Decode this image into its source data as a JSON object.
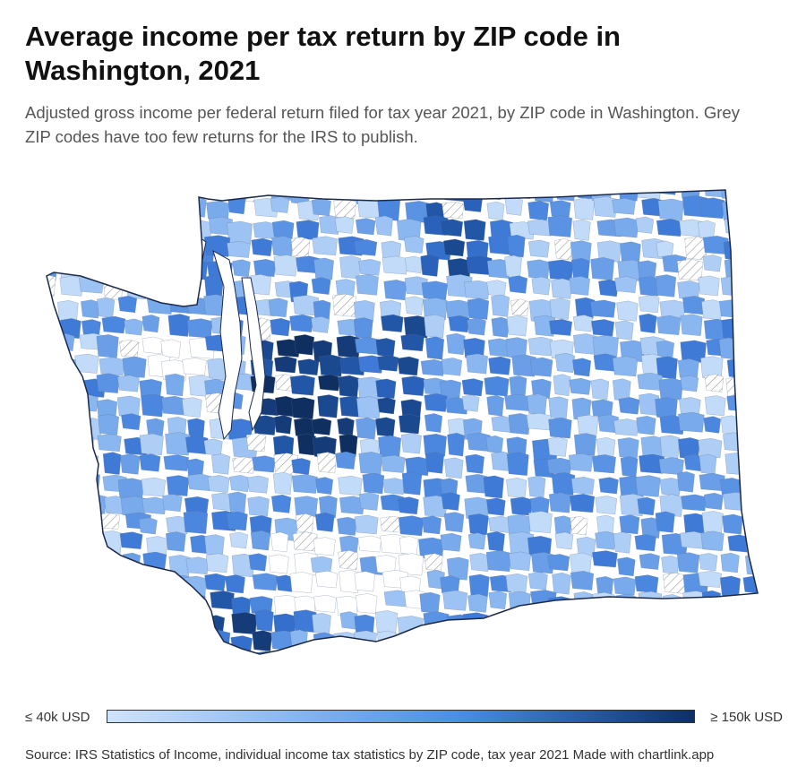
{
  "title": "Average income per tax return by ZIP code in Washington, 2021",
  "subtitle": "Adjusted gross income per federal return filed for tax year 2021, by ZIP code in Washington. Grey ZIP codes have too few returns for the IRS to publish.",
  "legend": {
    "min_label": "≤ 40k USD",
    "max_label": "≥ 150k USD",
    "color_low": "#cfe3fb",
    "color_mid": "#4a8ee3",
    "color_high": "#0d2f66"
  },
  "map": {
    "region": "Washington",
    "no_data_pattern": "hatched",
    "border_color": "#1c2a4a",
    "water_color": "#ffffff"
  },
  "footer": {
    "source": "Source: IRS Statistics of Income, individual income tax statistics by ZIP code, tax year 2021",
    "credit": "Made with chartlink.app"
  }
}
